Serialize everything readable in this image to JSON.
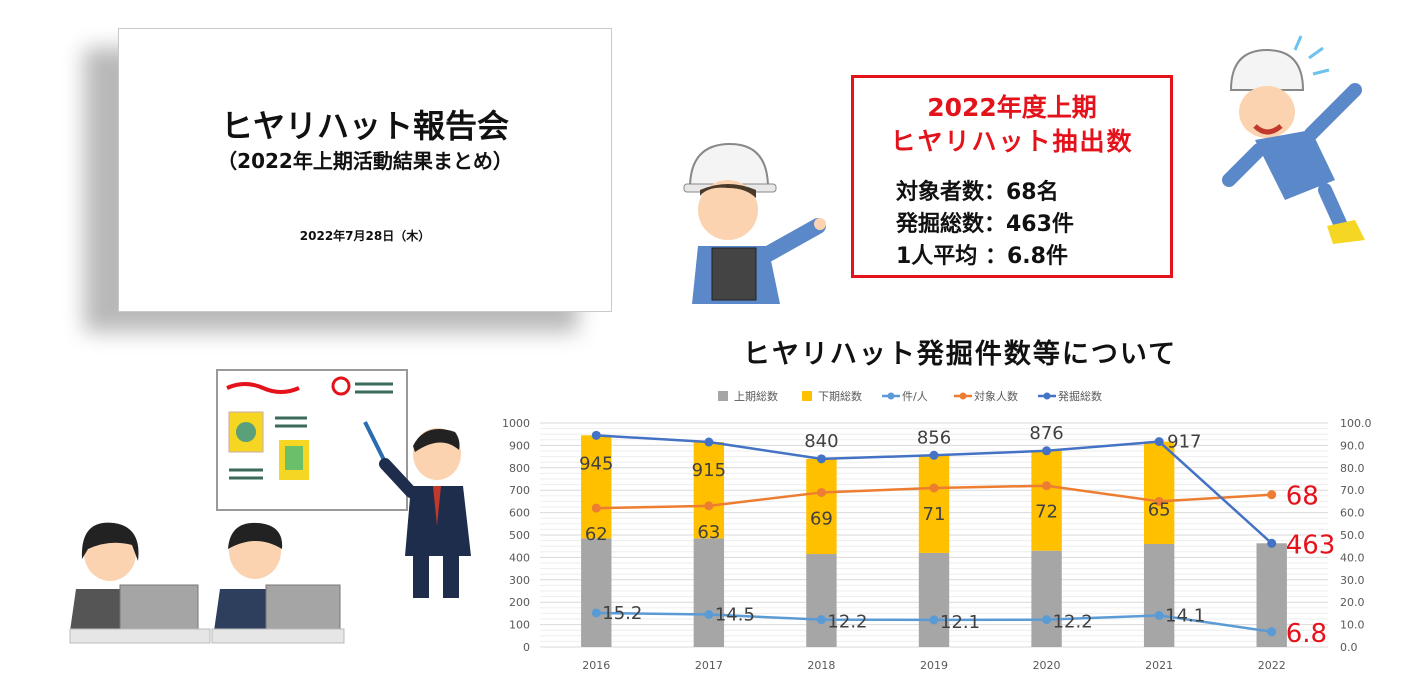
{
  "slide": {
    "title": "ヒヤリハット報告会",
    "subtitle": "（2022年上期活動結果まとめ）",
    "date": "2022年7月28日（木）"
  },
  "summary": {
    "line1": "2022年度上期",
    "line2": "ヒヤリハット抽出数",
    "stats": [
      "対象者数：68名",
      "発掘総数：463件",
      "1人平均 ：6.8件"
    ],
    "border_color": "#e3121b"
  },
  "chart_title": "ヒヤリハット発掘件数等について",
  "chart_data": {
    "type": "bar",
    "categories": [
      "2016",
      "2017",
      "2018",
      "2019",
      "2020",
      "2021",
      "2022"
    ],
    "left_axis": {
      "ylim": [
        0,
        1000
      ],
      "ticks": [
        "0",
        "100",
        "200",
        "300",
        "400",
        "500",
        "600",
        "700",
        "800",
        "900",
        "1000"
      ]
    },
    "right_axis": {
      "ylim": [
        0,
        100
      ],
      "ticks": [
        "0.0",
        "10.0",
        "20.0",
        "30.0",
        "40.0",
        "50.0",
        "60.0",
        "70.0",
        "80.0",
        "90.0",
        "100.0"
      ]
    },
    "legend_position": "top",
    "grid": true,
    "series": [
      {
        "name": "上期総数",
        "kind": "stacked-bar",
        "axis": "left",
        "color": "#a6a6a6",
        "values": [
          485,
          485,
          415,
          420,
          430,
          460,
          463
        ]
      },
      {
        "name": "下期総数",
        "kind": "stacked-bar",
        "axis": "left",
        "color": "#ffc000",
        "values": [
          460,
          430,
          425,
          436,
          446,
          457,
          0
        ]
      },
      {
        "name": "件/人",
        "kind": "line",
        "axis": "right",
        "color": "#5b9bd5",
        "values": [
          15.2,
          14.5,
          12.2,
          12.1,
          12.2,
          14.1,
          6.8
        ],
        "labels": [
          "15.2",
          "14.5",
          "12.2",
          "12.1",
          "12.2",
          "14.1",
          "6.8"
        ]
      },
      {
        "name": "対象人数",
        "kind": "line",
        "axis": "right",
        "color": "#ed7d31",
        "values": [
          62,
          63,
          69,
          71,
          72,
          65,
          68
        ],
        "labels": [
          "62",
          "63",
          "69",
          "71",
          "72",
          "65",
          "68"
        ]
      },
      {
        "name": "発掘総数",
        "kind": "line",
        "axis": "left",
        "color": "#4472c4",
        "values": [
          945,
          915,
          840,
          856,
          876,
          917,
          463
        ],
        "labels": [
          "945",
          "915",
          "840",
          "856",
          "876",
          "917",
          "463"
        ]
      }
    ],
    "highlight_color": "#e3121b"
  }
}
